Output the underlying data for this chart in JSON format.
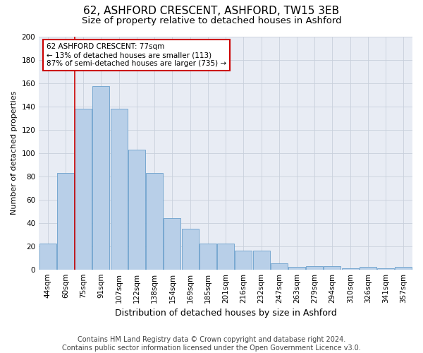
{
  "title1": "62, ASHFORD CRESCENT, ASHFORD, TW15 3EB",
  "title2": "Size of property relative to detached houses in Ashford",
  "xlabel": "Distribution of detached houses by size in Ashford",
  "ylabel": "Number of detached properties",
  "categories": [
    "44sqm",
    "60sqm",
    "75sqm",
    "91sqm",
    "107sqm",
    "122sqm",
    "138sqm",
    "154sqm",
    "169sqm",
    "185sqm",
    "201sqm",
    "216sqm",
    "232sqm",
    "247sqm",
    "263sqm",
    "279sqm",
    "294sqm",
    "310sqm",
    "326sqm",
    "341sqm",
    "357sqm"
  ],
  "values": [
    22,
    83,
    138,
    157,
    138,
    103,
    83,
    44,
    35,
    22,
    22,
    16,
    16,
    5,
    2,
    3,
    3,
    1,
    2,
    1,
    2
  ],
  "bar_color": "#b8cfe8",
  "bar_edge_color": "#6aa0cc",
  "property_line_x": 1.5,
  "annotation_text": "62 ASHFORD CRESCENT: 77sqm\n← 13% of detached houses are smaller (113)\n87% of semi-detached houses are larger (735) →",
  "annotation_box_color": "#ffffff",
  "annotation_box_edge": "#cc0000",
  "vline_color": "#cc0000",
  "grid_color": "#c8d0dc",
  "background_color": "#e8ecf4",
  "footer_text": "Contains HM Land Registry data © Crown copyright and database right 2024.\nContains public sector information licensed under the Open Government Licence v3.0.",
  "ylim": [
    0,
    200
  ],
  "yticks": [
    0,
    20,
    40,
    60,
    80,
    100,
    120,
    140,
    160,
    180,
    200
  ],
  "title1_fontsize": 11,
  "title2_fontsize": 9.5,
  "xlabel_fontsize": 9,
  "ylabel_fontsize": 8,
  "tick_fontsize": 7.5,
  "footer_fontsize": 7
}
